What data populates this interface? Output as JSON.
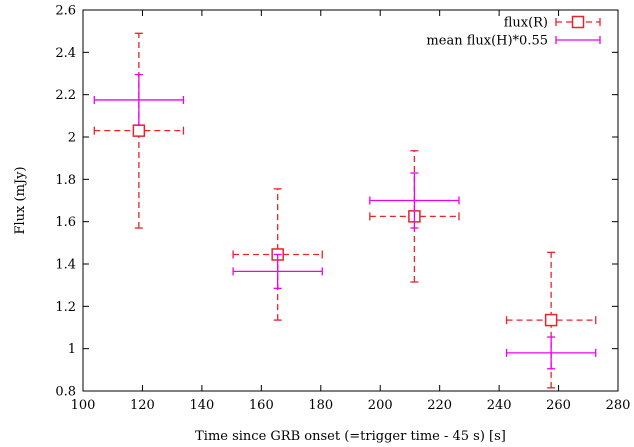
{
  "chart_data": {
    "type": "scatter",
    "title": "",
    "xlabel": "Time since GRB onset (=trigger time - 45 s) [s]",
    "ylabel": "Flux (mJy)",
    "xlim": [
      100,
      280
    ],
    "ylim": [
      0.8,
      2.6
    ],
    "xticks": [
      100,
      120,
      140,
      160,
      180,
      200,
      220,
      240,
      260,
      280
    ],
    "yticks": [
      0.8,
      1,
      1.2,
      1.4,
      1.6,
      1.8,
      2,
      2.2,
      2.4,
      2.6
    ],
    "xtick_labels": [
      "100",
      "120",
      "140",
      "160",
      "180",
      "200",
      "220",
      "240",
      "260",
      "280"
    ],
    "ytick_labels": [
      "0.8",
      "1",
      "1.2",
      "1.4",
      "1.6",
      "1.8",
      "2",
      "2.2",
      "2.4",
      "2.6"
    ],
    "grid": false,
    "legend_position": "top-right",
    "series": [
      {
        "name": "flux(R)",
        "color": "#e8232a",
        "marker": "open-square",
        "line_style": "dashed",
        "points": [
          {
            "x": 118.8,
            "xerr": 15,
            "y": 2.03,
            "yerr": 0.46
          },
          {
            "x": 165.5,
            "xerr": 15,
            "y": 1.445,
            "yerr": 0.31
          },
          {
            "x": 211.5,
            "xerr": 15,
            "y": 1.625,
            "yerr": 0.31
          },
          {
            "x": 257.5,
            "xerr": 15,
            "y": 1.135,
            "yerr": 0.32
          }
        ]
      },
      {
        "name": "mean flux(H)*0.55",
        "color": "#ee00ee",
        "marker": "none",
        "line_style": "solid",
        "points": [
          {
            "x": 118.8,
            "xerr": 15,
            "y": 2.175,
            "yerr": 0.12
          },
          {
            "x": 165.5,
            "xerr": 15,
            "y": 1.365,
            "yerr": 0.08
          },
          {
            "x": 211.5,
            "xerr": 15,
            "y": 1.7,
            "yerr": 0.13
          },
          {
            "x": 257.5,
            "xerr": 15,
            "y": 0.98,
            "yerr": 0.075
          }
        ]
      }
    ]
  }
}
